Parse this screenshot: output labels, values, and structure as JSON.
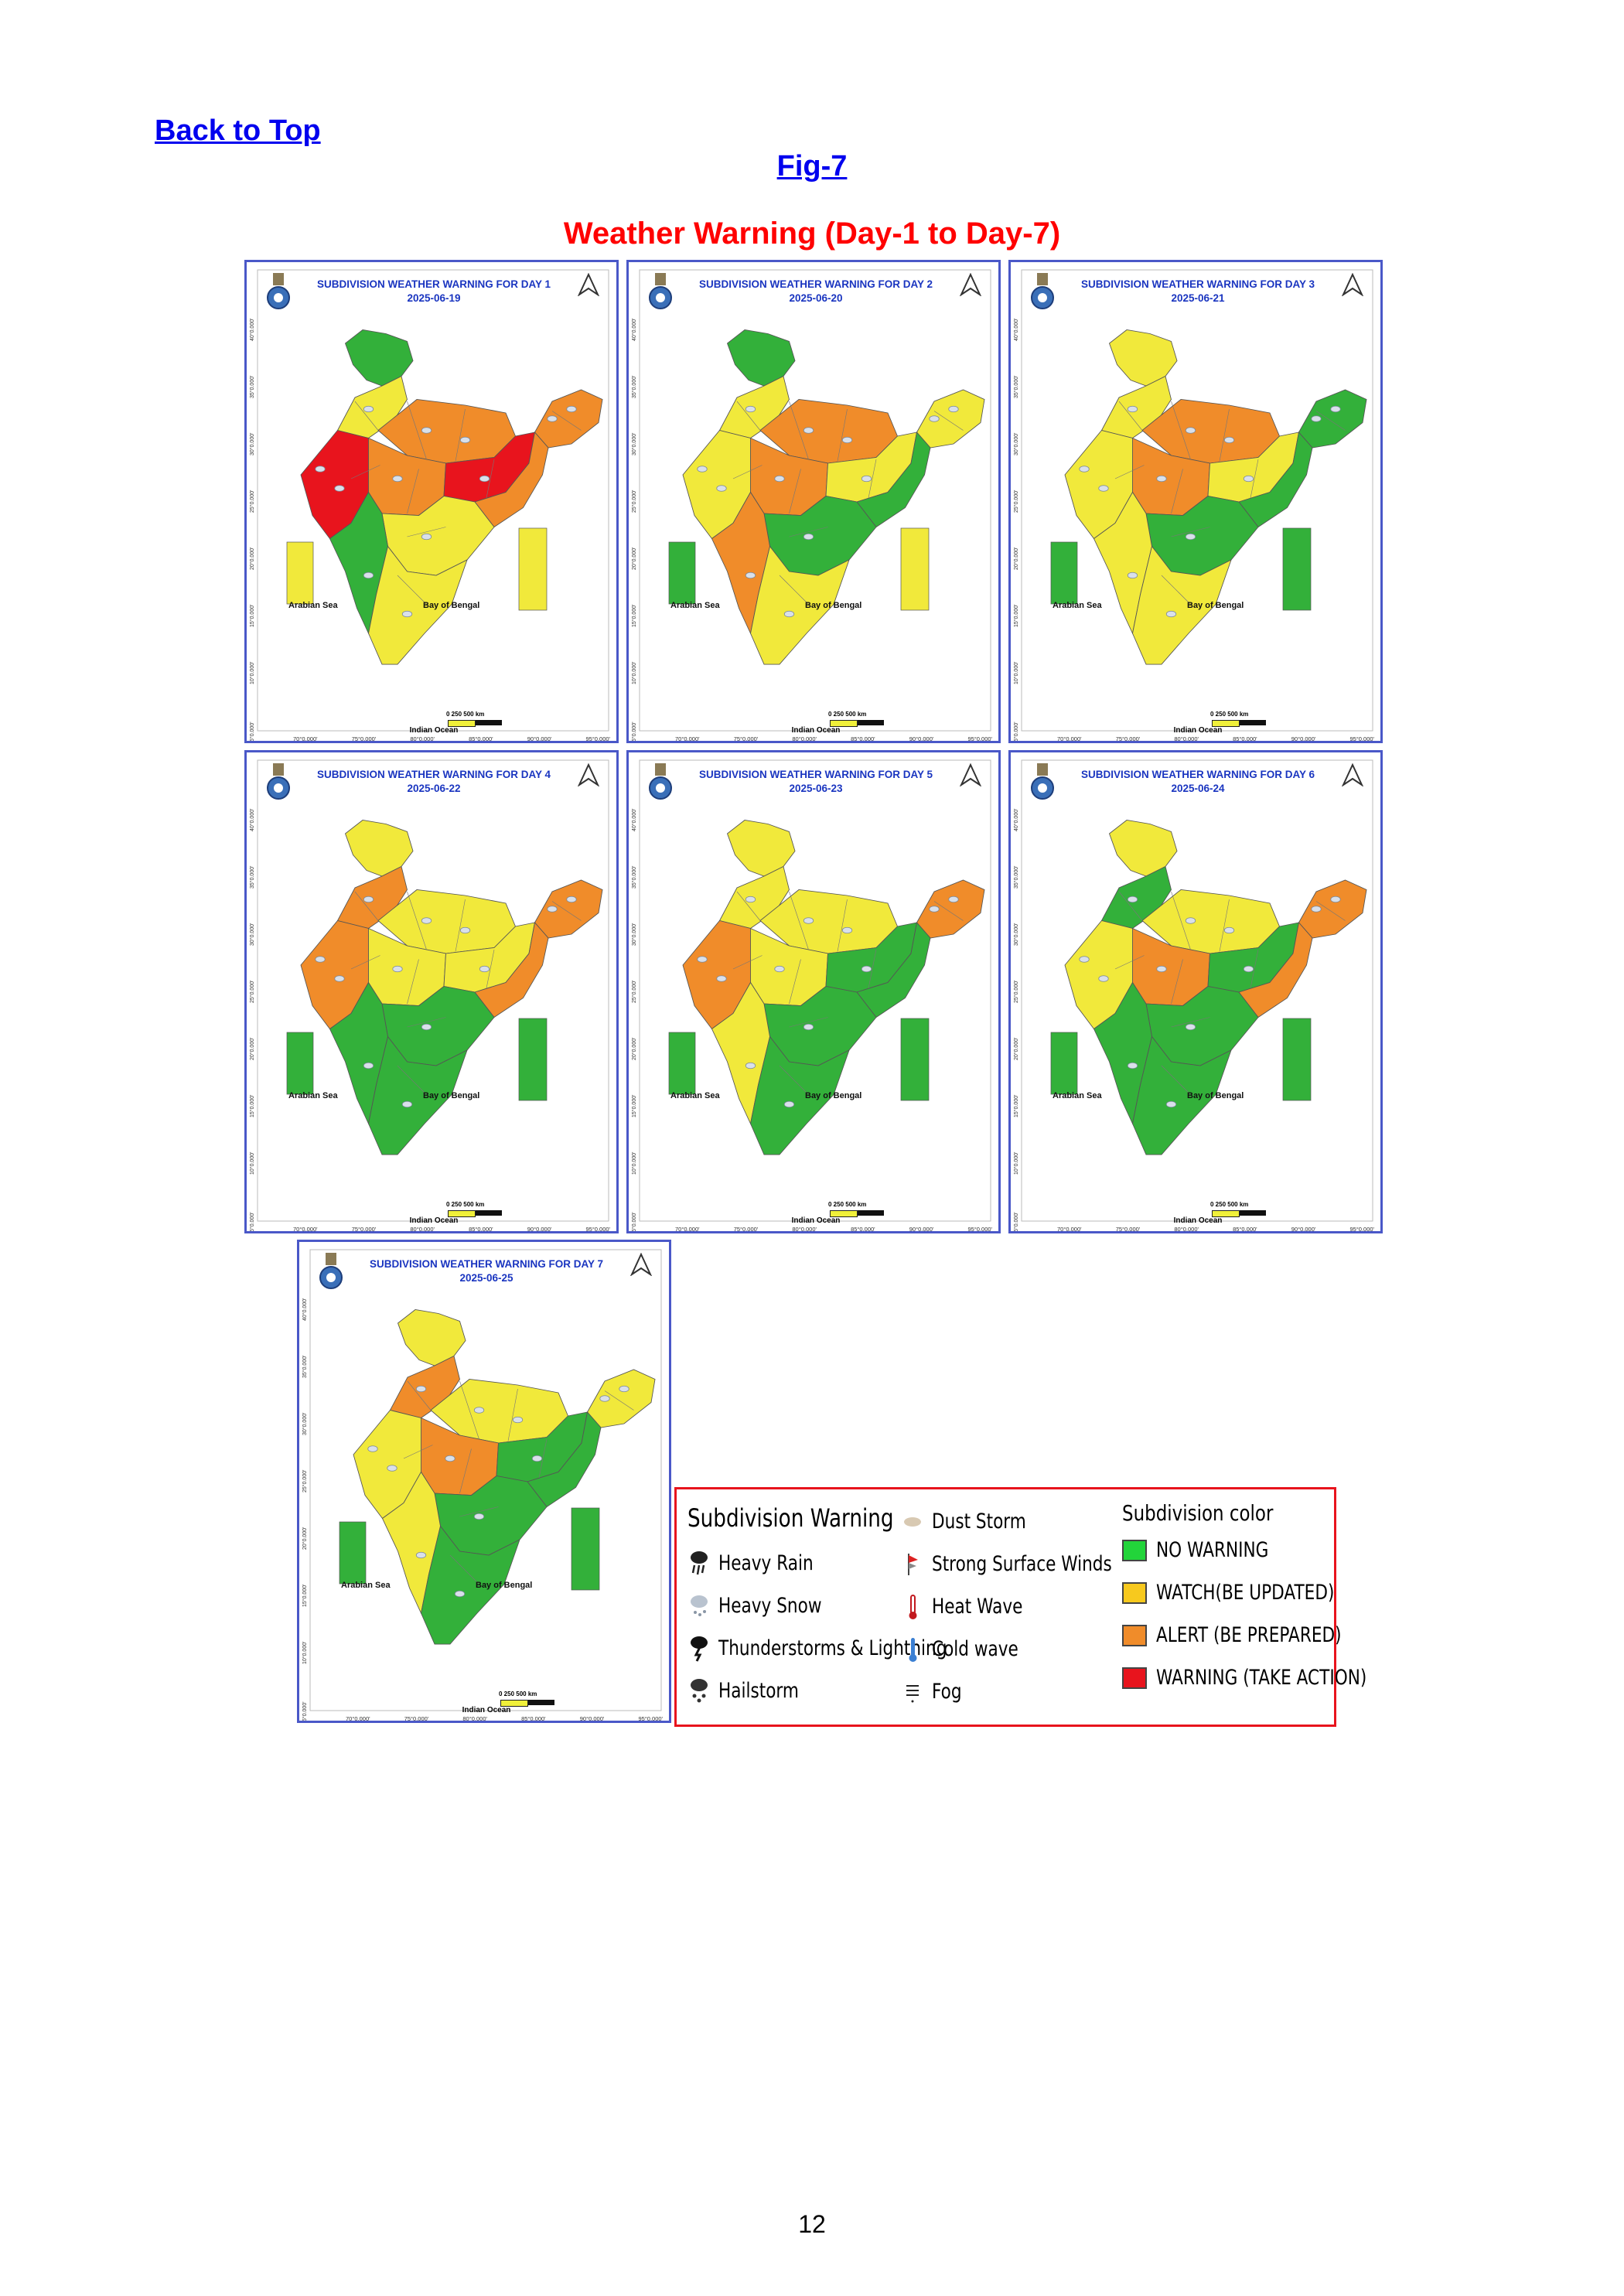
{
  "header": {
    "back_link": "Back to Top",
    "fig_label": "Fig-7",
    "title": "Weather Warning (Day-1 to Day-7)"
  },
  "colors": {
    "no_warning": "#33b03a",
    "watch": "#f1e93b",
    "alert": "#f08c2a",
    "warning": "#e8141d",
    "title_blue": "#1a35c0",
    "title_red": "#ff0000"
  },
  "map_labels": {
    "arabian_sea": "Arabian Sea",
    "bay_of_bengal": "Bay of Bengal",
    "indian_ocean": "Indian Ocean",
    "scale": "0     250     500 km"
  },
  "x_ticks": [
    "70°0.000'",
    "75°0.000'",
    "80°0.000'",
    "85°0.000'",
    "90°0.000'",
    "95°0.000'"
  ],
  "y_ticks": [
    "40°0.000'",
    "35°0.000'",
    "30°0.000'",
    "25°0.000'",
    "20°0.000'",
    "15°0.000'",
    "10°0.000'",
    "5°0.000'"
  ],
  "panels": [
    {
      "title": "SUBDIVISION WEATHER WARNING FOR DAY 1",
      "date": "2025-06-19",
      "regions": {
        "jk": "no_warning",
        "nw": "watch",
        "north": "alert",
        "northeast": "alert",
        "west": "warning",
        "central": "alert",
        "east": "warning",
        "east2": "alert",
        "deccan": "watch",
        "westcoast": "no_warning",
        "south": "watch",
        "islands_l": "watch",
        "islands_r": "watch"
      }
    },
    {
      "title": "SUBDIVISION WEATHER WARNING FOR DAY 2",
      "date": "2025-06-20",
      "regions": {
        "jk": "no_warning",
        "nw": "watch",
        "north": "alert",
        "northeast": "watch",
        "west": "watch",
        "central": "alert",
        "east": "watch",
        "east2": "no_warning",
        "deccan": "no_warning",
        "westcoast": "alert",
        "south": "watch",
        "islands_l": "no_warning",
        "islands_r": "watch"
      }
    },
    {
      "title": "SUBDIVISION WEATHER WARNING FOR DAY 3",
      "date": "2025-06-21",
      "regions": {
        "jk": "watch",
        "nw": "watch",
        "north": "alert",
        "northeast": "no_warning",
        "west": "watch",
        "central": "alert",
        "east": "watch",
        "east2": "no_warning",
        "deccan": "no_warning",
        "westcoast": "watch",
        "south": "watch",
        "islands_l": "no_warning",
        "islands_r": "no_warning"
      }
    },
    {
      "title": "SUBDIVISION WEATHER WARNING FOR DAY 4",
      "date": "2025-06-22",
      "regions": {
        "jk": "watch",
        "nw": "alert",
        "north": "watch",
        "northeast": "alert",
        "west": "alert",
        "central": "watch",
        "east": "watch",
        "east2": "alert",
        "deccan": "no_warning",
        "westcoast": "no_warning",
        "south": "no_warning",
        "islands_l": "no_warning",
        "islands_r": "no_warning"
      }
    },
    {
      "title": "SUBDIVISION WEATHER WARNING FOR DAY 5",
      "date": "2025-06-23",
      "regions": {
        "jk": "watch",
        "nw": "watch",
        "north": "watch",
        "northeast": "alert",
        "west": "alert",
        "central": "watch",
        "east": "no_warning",
        "east2": "no_warning",
        "deccan": "no_warning",
        "westcoast": "watch",
        "south": "no_warning",
        "islands_l": "no_warning",
        "islands_r": "no_warning"
      }
    },
    {
      "title": "SUBDIVISION WEATHER WARNING FOR DAY 6",
      "date": "2025-06-24",
      "regions": {
        "jk": "watch",
        "nw": "no_warning",
        "north": "watch",
        "northeast": "alert",
        "west": "watch",
        "central": "alert",
        "east": "no_warning",
        "east2": "alert",
        "deccan": "no_warning",
        "westcoast": "no_warning",
        "south": "no_warning",
        "islands_l": "no_warning",
        "islands_r": "no_warning"
      }
    },
    {
      "title": "SUBDIVISION WEATHER WARNING FOR DAY 7",
      "date": "2025-06-25",
      "regions": {
        "jk": "watch",
        "nw": "alert",
        "north": "watch",
        "northeast": "watch",
        "west": "watch",
        "central": "alert",
        "east": "no_warning",
        "east2": "no_warning",
        "deccan": "no_warning",
        "westcoast": "watch",
        "south": "no_warning",
        "islands_l": "no_warning",
        "islands_r": "no_warning"
      }
    }
  ],
  "legend": {
    "warning_heading": "Subdivision Warning",
    "warnings_col1": [
      {
        "label": "Heavy Rain",
        "icon": "heavy-rain-icon"
      },
      {
        "label": "Heavy Snow",
        "icon": "heavy-snow-icon"
      },
      {
        "label": "Thunderstorms & Lightning",
        "icon": "thunderstorm-icon"
      },
      {
        "label": "Hailstorm",
        "icon": "hailstorm-icon"
      }
    ],
    "warnings_col2": [
      {
        "label": "Dust Storm",
        "icon": "dust-storm-icon"
      },
      {
        "label": "Strong Surface Winds",
        "icon": "strong-wind-icon"
      },
      {
        "label": "Heat Wave",
        "icon": "heat-wave-icon"
      },
      {
        "label": "Cold wave",
        "icon": "cold-wave-icon"
      },
      {
        "label": "Fog",
        "icon": "fog-icon"
      }
    ],
    "color_heading": "Subdivision color",
    "colors": [
      {
        "label": "NO WARNING",
        "color": "#22d43a"
      },
      {
        "label": "WATCH(BE UPDATED)",
        "color": "#f7c91e"
      },
      {
        "label": "ALERT (BE PREPARED)",
        "color": "#f08c2a"
      },
      {
        "label": "WARNING (TAKE ACTION)",
        "color": "#e8141d"
      }
    ]
  },
  "page_number": "12"
}
